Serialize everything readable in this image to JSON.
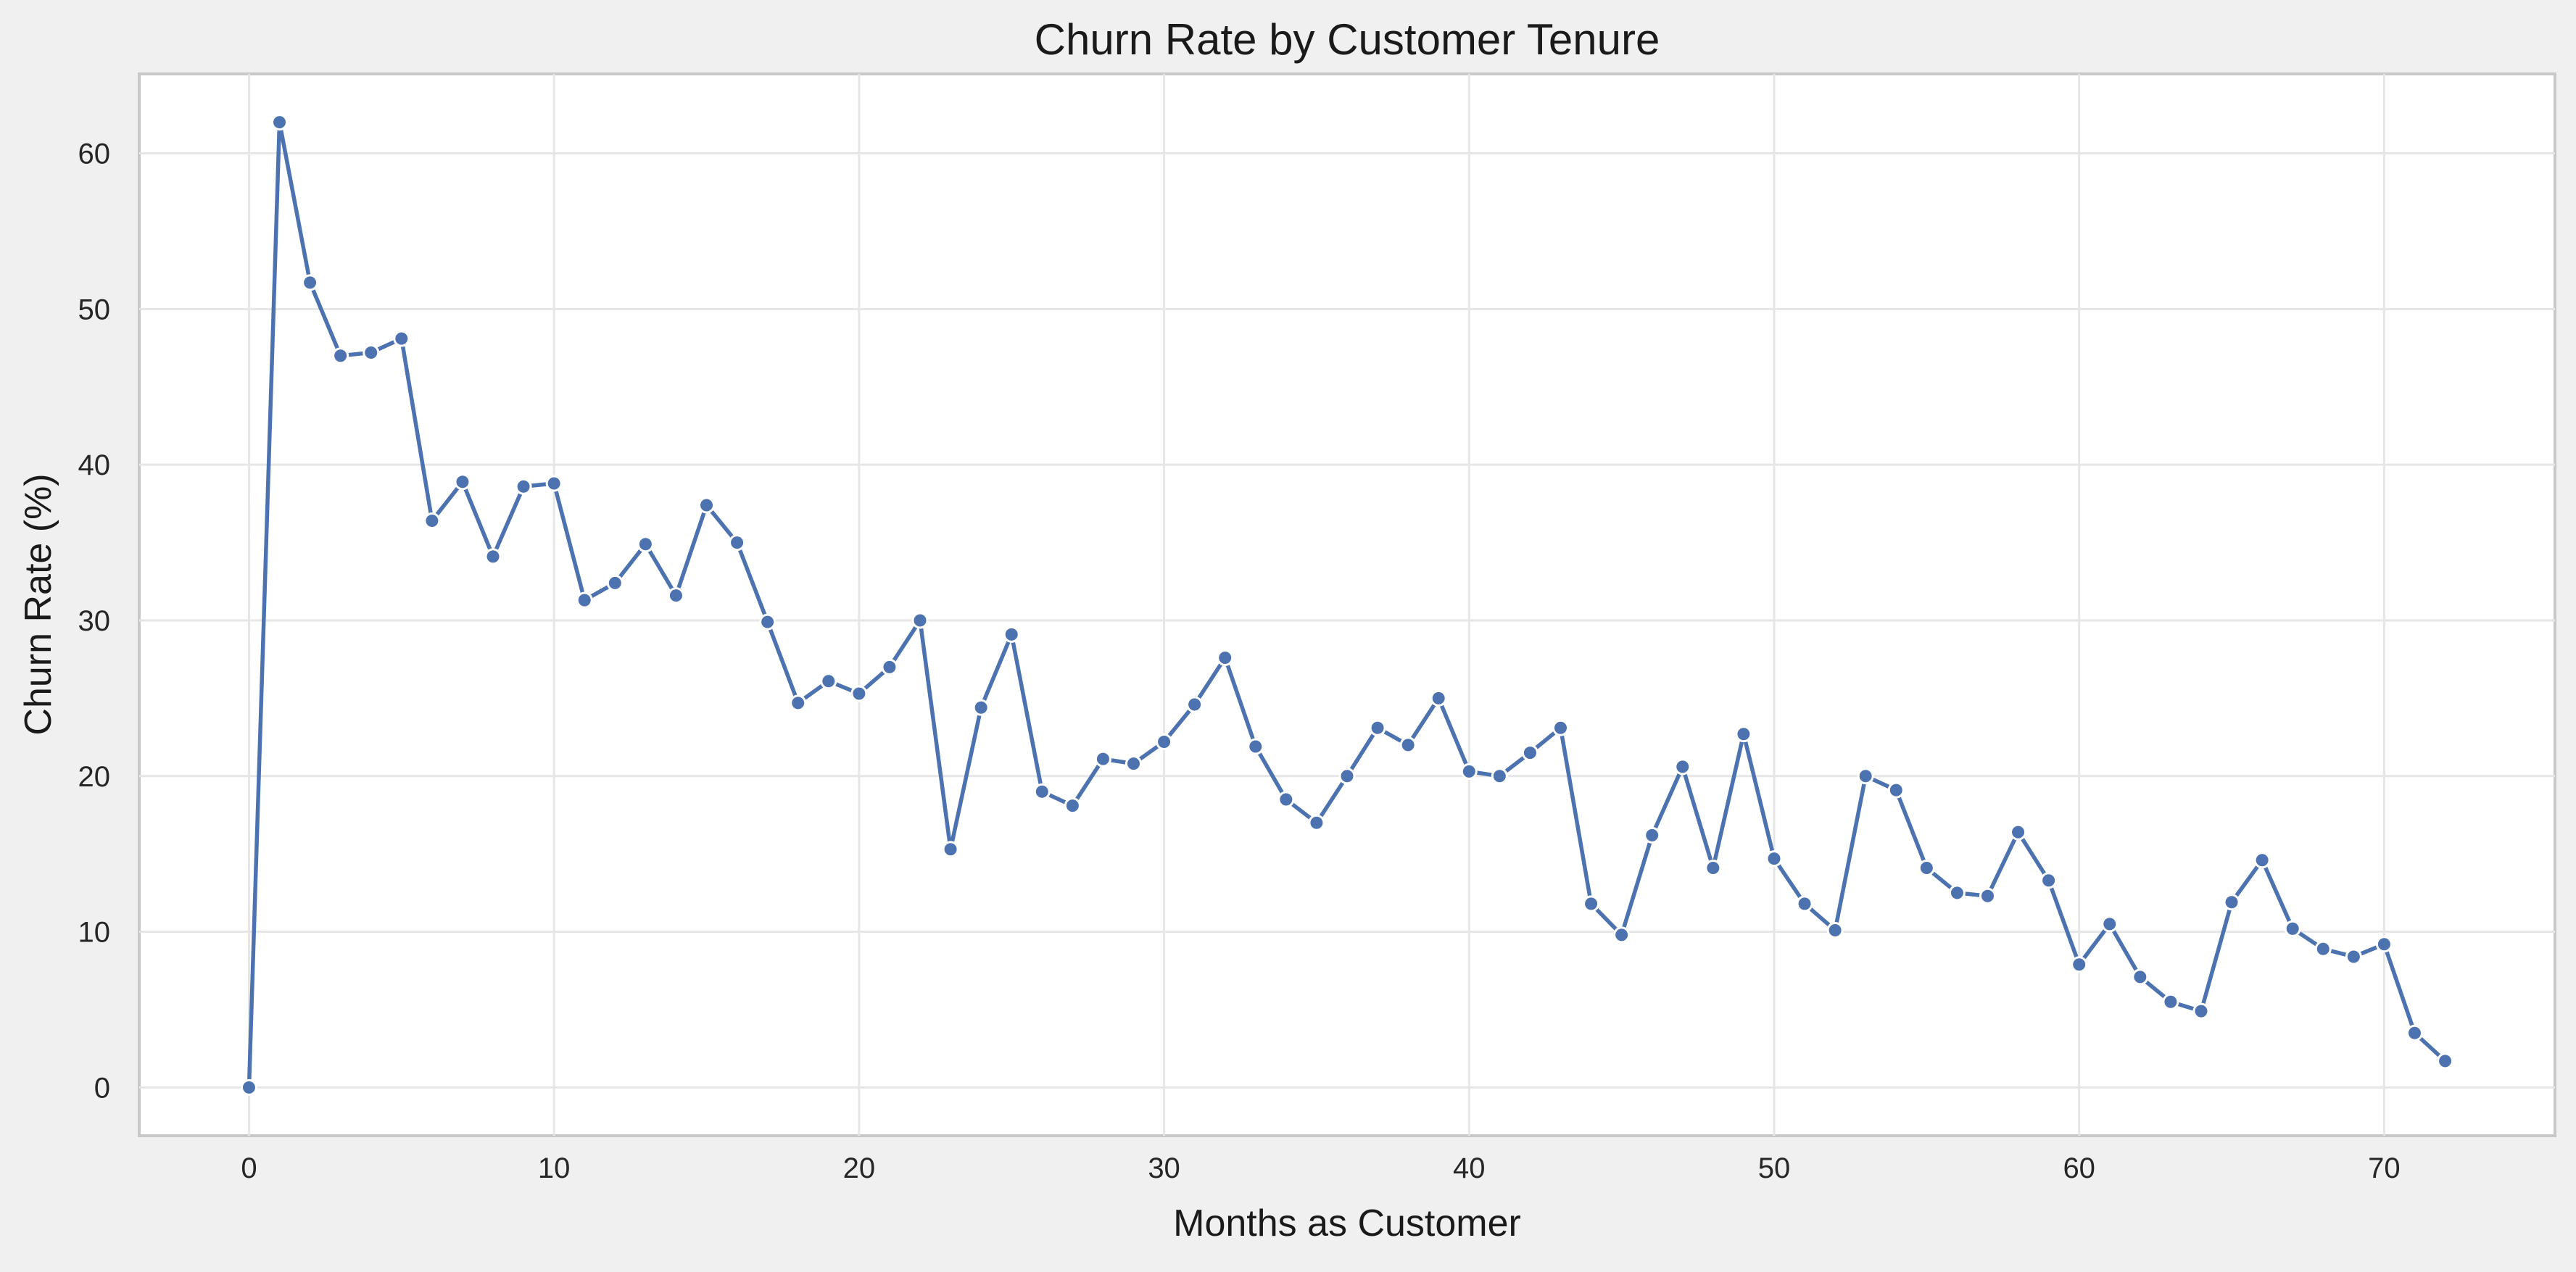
{
  "colors": {
    "background": "#f0f0f0",
    "plot_background": "#ffffff",
    "series": "#4c72b0",
    "grid": "#e6e6e6",
    "frame": "#c8c8c8"
  },
  "chart_data": {
    "type": "line",
    "title": "Churn Rate by Customer Tenure",
    "xlabel": "Months as Customer",
    "ylabel": "Churn Rate (%)",
    "xlim": [
      -3.6,
      75.6
    ],
    "ylim": [
      -3.1,
      65.1
    ],
    "xticks": [
      0,
      10,
      20,
      30,
      40,
      50,
      60,
      70
    ],
    "yticks": [
      0,
      10,
      20,
      30,
      40,
      50,
      60
    ],
    "grid": true,
    "legend": "none",
    "markers": true,
    "series": [
      {
        "x": [
          0,
          1,
          2,
          3,
          4,
          5,
          6,
          7,
          8,
          9,
          10,
          11,
          12,
          13,
          14,
          15,
          16,
          17,
          18,
          19,
          20,
          21,
          22,
          23,
          24,
          25,
          26,
          27,
          28,
          29,
          30,
          31,
          32,
          33,
          34,
          35,
          36,
          37,
          38,
          39,
          40,
          41,
          42,
          43,
          44,
          45,
          46,
          47,
          48,
          49,
          50,
          51,
          52,
          53,
          54,
          55,
          56,
          57,
          58,
          59,
          60,
          61,
          62,
          63,
          64,
          65,
          66,
          67,
          68,
          69,
          70,
          71,
          72
        ],
        "y": [
          0,
          62.0,
          51.7,
          47.0,
          47.2,
          48.1,
          36.4,
          38.9,
          34.1,
          38.6,
          38.8,
          31.3,
          32.4,
          34.9,
          31.6,
          37.4,
          35.0,
          29.9,
          24.7,
          26.1,
          25.3,
          27.0,
          30.0,
          15.3,
          24.4,
          29.1,
          19.0,
          18.1,
          21.1,
          20.8,
          22.2,
          24.6,
          27.6,
          21.9,
          18.5,
          17.0,
          20.0,
          23.1,
          22.0,
          25.0,
          20.3,
          20.0,
          21.5,
          23.1,
          11.8,
          9.8,
          16.2,
          20.6,
          14.1,
          22.7,
          14.7,
          11.8,
          10.1,
          20.0,
          19.1,
          14.1,
          12.5,
          12.3,
          16.4,
          13.3,
          7.9,
          10.5,
          7.1,
          5.5,
          4.9,
          11.9,
          14.6,
          10.2,
          8.9,
          8.4,
          9.2,
          3.5,
          1.7
        ]
      }
    ]
  }
}
